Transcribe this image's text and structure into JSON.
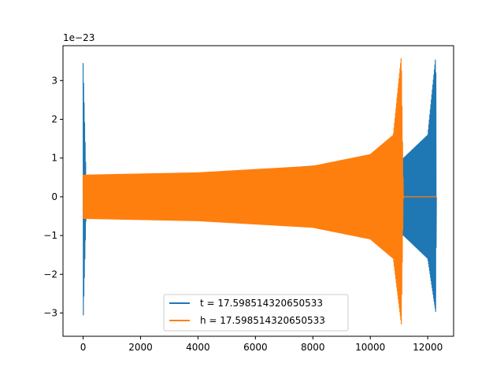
{
  "chart_data": {
    "type": "line",
    "title": "",
    "xlabel": "",
    "ylabel": "",
    "y_offset_label": "1e−23",
    "xlim": [
      -700,
      12900
    ],
    "ylim": [
      -3.6e-23,
      3.9e-23
    ],
    "x_ticks": [
      0,
      2000,
      4000,
      6000,
      8000,
      10000,
      12000
    ],
    "x_tick_labels": [
      "0",
      "2000",
      "4000",
      "6000",
      "8000",
      "10000",
      "12000"
    ],
    "y_ticks": [
      -3e-23,
      -2e-23,
      -1e-23,
      0,
      1e-23,
      2e-23,
      3e-23
    ],
    "y_tick_labels": [
      "−3",
      "−2",
      "−1",
      "0",
      "1",
      "2",
      "3"
    ],
    "grid": false,
    "legend_position": "lower-center",
    "series": [
      {
        "name": "t = 17.598514320650533",
        "color": "#1f77b4",
        "description_points": [
          {
            "x": 0,
            "y_min": -3.3e-23,
            "y_max": 3.45e-23
          },
          {
            "x": 100,
            "y_min": -5.5e-24,
            "y_max": 5.5e-24
          },
          {
            "x": 5000,
            "y_min": -6e-24,
            "y_max": 6.2e-24
          },
          {
            "x": 11150,
            "y_min": -1e-23,
            "y_max": 1e-23
          },
          {
            "x": 12000,
            "y_min": -1.6e-23,
            "y_max": 1.6e-23
          },
          {
            "x": 12280,
            "y_min": -3e-23,
            "y_max": 3.65e-23
          },
          {
            "x": 12300,
            "y_min": 0,
            "y_max": 0
          }
        ]
      },
      {
        "name": "h = 17.598514320650533",
        "color": "#ff7f0e",
        "description_points": [
          {
            "x": 0,
            "y_min": -5.7e-24,
            "y_max": 5.7e-24
          },
          {
            "x": 4000,
            "y_min": -6.3e-24,
            "y_max": 6.3e-24
          },
          {
            "x": 8000,
            "y_min": -8e-24,
            "y_max": 8e-24
          },
          {
            "x": 10000,
            "y_min": -1.1e-23,
            "y_max": 1.1e-23
          },
          {
            "x": 10800,
            "y_min": -1.6e-23,
            "y_max": 1.6e-23
          },
          {
            "x": 11080,
            "y_min": -3.3e-23,
            "y_max": 3.65e-23
          },
          {
            "x": 11150,
            "y_min": 0,
            "y_max": 0
          },
          {
            "x": 12300,
            "y_min": 0,
            "y_max": 0
          }
        ]
      }
    ]
  }
}
